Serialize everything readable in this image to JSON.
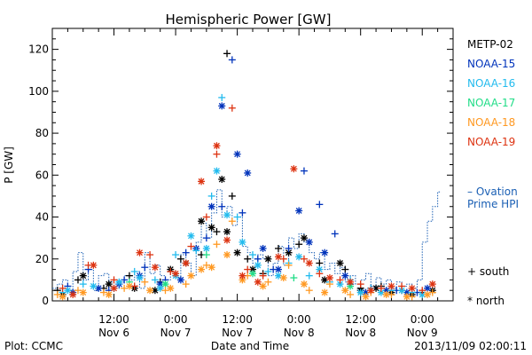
{
  "chart_data": {
    "type": "scatter",
    "title": "Hemispheric Power [GW]",
    "ylabel": "P [GW]",
    "xlabel": "Date and Time",
    "ylim": [
      0,
      130
    ],
    "xlim_hours": [
      0,
      78
    ],
    "y_ticks": [
      0,
      20,
      40,
      60,
      80,
      100,
      120
    ],
    "x_ticks": [
      {
        "hour": 12,
        "time": "12:00",
        "date": "Nov 6"
      },
      {
        "hour": 24,
        "time": "0:00",
        "date": "Nov 7"
      },
      {
        "hour": 36,
        "time": "12:00",
        "date": "Nov 7"
      },
      {
        "hour": 48,
        "time": "0:00",
        "date": "Nov 8"
      },
      {
        "hour": 60,
        "time": "12:00",
        "date": "Nov 8"
      },
      {
        "hour": 72,
        "time": "0:00",
        "date": "Nov 9"
      }
    ],
    "legend": [
      {
        "name": "METP-02",
        "color": "#000000"
      },
      {
        "name": "NOAA-15",
        "color": "#0033bb"
      },
      {
        "name": "NOAA-16",
        "color": "#22bbee"
      },
      {
        "name": "NOAA-17",
        "color": "#22dd88"
      },
      {
        "name": "NOAA-18",
        "color": "#ff9922"
      },
      {
        "name": "NOAA-19",
        "color": "#dd3311"
      }
    ],
    "ovation_label_line1": "– Ovation",
    "ovation_label_line2": "Prime HPI",
    "ovation_color": "#1a5fb4",
    "marker_south_label": "+ south",
    "marker_north_label": "* north",
    "ovation_series": [
      [
        0,
        6
      ],
      [
        1,
        8
      ],
      [
        2,
        10
      ],
      [
        3,
        5
      ],
      [
        4,
        14
      ],
      [
        5,
        23
      ],
      [
        6,
        10
      ],
      [
        7,
        15
      ],
      [
        8,
        5
      ],
      [
        9,
        12
      ],
      [
        10,
        13
      ],
      [
        11,
        9
      ],
      [
        12,
        6
      ],
      [
        13,
        9
      ],
      [
        14,
        12
      ],
      [
        15,
        10
      ],
      [
        16,
        14
      ],
      [
        17,
        6
      ],
      [
        18,
        23
      ],
      [
        19,
        13
      ],
      [
        20,
        17
      ],
      [
        21,
        12
      ],
      [
        22,
        10
      ],
      [
        23,
        14
      ],
      [
        24,
        11
      ],
      [
        25,
        22
      ],
      [
        26,
        18
      ],
      [
        27,
        12
      ],
      [
        28,
        28
      ],
      [
        29,
        37
      ],
      [
        30,
        30
      ],
      [
        31,
        42
      ],
      [
        32,
        53
      ],
      [
        33,
        40
      ],
      [
        34,
        45
      ],
      [
        35,
        36
      ],
      [
        36,
        40
      ],
      [
        37,
        26
      ],
      [
        38,
        23
      ],
      [
        39,
        18
      ],
      [
        40,
        22
      ],
      [
        41,
        20
      ],
      [
        42,
        12
      ],
      [
        43,
        18
      ],
      [
        44,
        26
      ],
      [
        45,
        17
      ],
      [
        46,
        30
      ],
      [
        47,
        25
      ],
      [
        48,
        32
      ],
      [
        49,
        28
      ],
      [
        50,
        23
      ],
      [
        51,
        20
      ],
      [
        52,
        23
      ],
      [
        53,
        15
      ],
      [
        54,
        18
      ],
      [
        55,
        13
      ],
      [
        56,
        16
      ],
      [
        57,
        9
      ],
      [
        58,
        12
      ],
      [
        59,
        8
      ],
      [
        60,
        10
      ],
      [
        61,
        13
      ],
      [
        62,
        7
      ],
      [
        63,
        11
      ],
      [
        64,
        8
      ],
      [
        65,
        10
      ],
      [
        66,
        6
      ],
      [
        67,
        9
      ],
      [
        68,
        7
      ],
      [
        69,
        8
      ],
      [
        70,
        6
      ],
      [
        71,
        10
      ],
      [
        72,
        28
      ],
      [
        73,
        38
      ],
      [
        74,
        45
      ],
      [
        75,
        52
      ]
    ],
    "series": [
      {
        "name": "METP-02",
        "south": [
          [
            1,
            5
          ],
          [
            5,
            10
          ],
          [
            10,
            6
          ],
          [
            15,
            12
          ],
          [
            21,
            9
          ],
          [
            25,
            20
          ],
          [
            29,
            22
          ],
          [
            32,
            33
          ],
          [
            34,
            118
          ],
          [
            35,
            50
          ],
          [
            38,
            20
          ],
          [
            41,
            13
          ],
          [
            44,
            25
          ],
          [
            48,
            27
          ],
          [
            52,
            18
          ],
          [
            57,
            15
          ],
          [
            60,
            6
          ],
          [
            64,
            7
          ],
          [
            68,
            5
          ],
          [
            72,
            4
          ]
        ],
        "north": [
          [
            2,
            3
          ],
          [
            6,
            12
          ],
          [
            11,
            8
          ],
          [
            16,
            6
          ],
          [
            20,
            5
          ],
          [
            23,
            15
          ],
          [
            26,
            18
          ],
          [
            29,
            38
          ],
          [
            31,
            35
          ],
          [
            33,
            58
          ],
          [
            34,
            33
          ],
          [
            36,
            23
          ],
          [
            39,
            15
          ],
          [
            42,
            20
          ],
          [
            46,
            23
          ],
          [
            49,
            30
          ],
          [
            53,
            10
          ],
          [
            56,
            18
          ],
          [
            60,
            5
          ],
          [
            63,
            6
          ],
          [
            66,
            4
          ],
          [
            70,
            3
          ],
          [
            74,
            5
          ]
        ]
      },
      {
        "name": "NOAA-15",
        "south": [
          [
            3,
            7
          ],
          [
            7,
            15
          ],
          [
            11,
            5
          ],
          [
            14,
            10
          ],
          [
            18,
            16
          ],
          [
            22,
            10
          ],
          [
            26,
            23
          ],
          [
            30,
            30
          ],
          [
            33,
            45
          ],
          [
            35,
            115
          ],
          [
            37,
            42
          ],
          [
            40,
            20
          ],
          [
            43,
            15
          ],
          [
            46,
            25
          ],
          [
            49,
            62
          ],
          [
            52,
            46
          ],
          [
            55,
            32
          ],
          [
            58,
            8
          ],
          [
            62,
            6
          ],
          [
            67,
            5
          ],
          [
            71,
            4
          ]
        ],
        "north": [
          [
            4,
            4
          ],
          [
            9,
            6
          ],
          [
            13,
            8
          ],
          [
            17,
            12
          ],
          [
            21,
            8
          ],
          [
            25,
            10
          ],
          [
            28,
            25
          ],
          [
            31,
            45
          ],
          [
            33,
            93
          ],
          [
            36,
            70
          ],
          [
            38,
            61
          ],
          [
            41,
            25
          ],
          [
            44,
            15
          ],
          [
            48,
            43
          ],
          [
            50,
            28
          ],
          [
            53,
            23
          ],
          [
            57,
            12
          ],
          [
            61,
            4
          ],
          [
            65,
            5
          ],
          [
            69,
            4
          ],
          [
            73,
            6
          ]
        ]
      },
      {
        "name": "NOAA-16",
        "south": [
          [
            2,
            4
          ],
          [
            6,
            8
          ],
          [
            12,
            6
          ],
          [
            16,
            14
          ],
          [
            20,
            10
          ],
          [
            24,
            22
          ],
          [
            28,
            24
          ],
          [
            31,
            50
          ],
          [
            33,
            97
          ],
          [
            36,
            40
          ],
          [
            39,
            22
          ],
          [
            42,
            14
          ],
          [
            46,
            18
          ],
          [
            50,
            12
          ],
          [
            54,
            9
          ],
          [
            58,
            10
          ],
          [
            62,
            6
          ],
          [
            66,
            5
          ],
          [
            70,
            4
          ]
        ],
        "north": [
          [
            3,
            5
          ],
          [
            8,
            7
          ],
          [
            13,
            9
          ],
          [
            17,
            11
          ],
          [
            21,
            6
          ],
          [
            24,
            12
          ],
          [
            27,
            31
          ],
          [
            30,
            25
          ],
          [
            32,
            62
          ],
          [
            34,
            41
          ],
          [
            37,
            28
          ],
          [
            40,
            17
          ],
          [
            44,
            12
          ],
          [
            48,
            21
          ],
          [
            52,
            15
          ],
          [
            56,
            8
          ],
          [
            60,
            4
          ],
          [
            64,
            4
          ],
          [
            68,
            5
          ],
          [
            72,
            3
          ]
        ]
      },
      {
        "name": "NOAA-17",
        "south": [
          [
            15,
            9
          ],
          [
            30,
            22
          ],
          [
            47,
            11
          ]
        ],
        "north": [
          [
            22,
            8
          ],
          [
            39,
            13
          ],
          [
            58,
            7
          ]
        ]
      },
      {
        "name": "NOAA-18",
        "south": [
          [
            1,
            3
          ],
          [
            5,
            5
          ],
          [
            10,
            4
          ],
          [
            14,
            6
          ],
          [
            18,
            9
          ],
          [
            22,
            5
          ],
          [
            26,
            8
          ],
          [
            30,
            17
          ],
          [
            32,
            27
          ],
          [
            35,
            38
          ],
          [
            38,
            12
          ],
          [
            42,
            9
          ],
          [
            46,
            17
          ],
          [
            50,
            5
          ],
          [
            54,
            8
          ],
          [
            58,
            3
          ],
          [
            62,
            4
          ],
          [
            66,
            3
          ],
          [
            70,
            2
          ],
          [
            74,
            4
          ]
        ],
        "north": [
          [
            2,
            2
          ],
          [
            6,
            4
          ],
          [
            11,
            3
          ],
          [
            15,
            7
          ],
          [
            19,
            5
          ],
          [
            23,
            6
          ],
          [
            27,
            12
          ],
          [
            29,
            15
          ],
          [
            31,
            16
          ],
          [
            34,
            22
          ],
          [
            37,
            10
          ],
          [
            41,
            7
          ],
          [
            45,
            11
          ],
          [
            49,
            8
          ],
          [
            53,
            4
          ],
          [
            57,
            5
          ],
          [
            61,
            2
          ],
          [
            65,
            3
          ],
          [
            69,
            2
          ],
          [
            73,
            3
          ]
        ]
      },
      {
        "name": "NOAA-19",
        "south": [
          [
            2,
            6
          ],
          [
            7,
            17
          ],
          [
            12,
            10
          ],
          [
            16,
            7
          ],
          [
            19,
            22
          ],
          [
            23,
            14
          ],
          [
            27,
            26
          ],
          [
            30,
            40
          ],
          [
            32,
            70
          ],
          [
            35,
            92
          ],
          [
            38,
            15
          ],
          [
            41,
            12
          ],
          [
            45,
            20
          ],
          [
            49,
            20
          ],
          [
            52,
            13
          ],
          [
            56,
            10
          ],
          [
            60,
            8
          ],
          [
            64,
            6
          ],
          [
            68,
            7
          ],
          [
            72,
            5
          ]
        ],
        "north": [
          [
            4,
            3
          ],
          [
            8,
            17
          ],
          [
            12,
            6
          ],
          [
            17,
            23
          ],
          [
            20,
            16
          ],
          [
            24,
            13
          ],
          [
            26,
            18
          ],
          [
            29,
            57
          ],
          [
            32,
            74
          ],
          [
            34,
            29
          ],
          [
            37,
            12
          ],
          [
            40,
            9
          ],
          [
            44,
            21
          ],
          [
            47,
            63
          ],
          [
            50,
            18
          ],
          [
            54,
            11
          ],
          [
            58,
            9
          ],
          [
            62,
            5
          ],
          [
            66,
            7
          ],
          [
            70,
            6
          ],
          [
            74,
            8
          ]
        ]
      }
    ]
  },
  "footer": {
    "plot_label": "Plot: CCMC",
    "timestamp": "2013/11/09 02:00:11"
  }
}
